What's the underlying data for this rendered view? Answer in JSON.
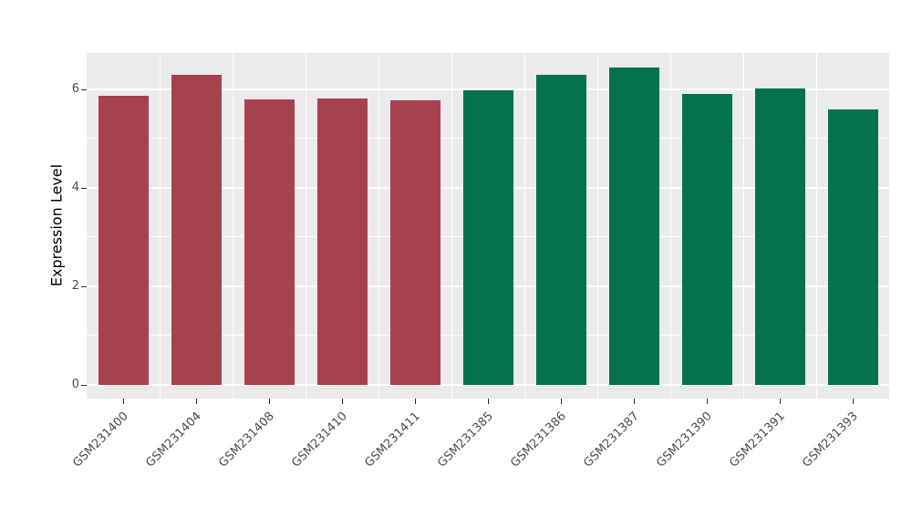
{
  "chart_data": {
    "type": "bar",
    "categories": [
      "GSM231400",
      "GSM231404",
      "GSM231408",
      "GSM231410",
      "GSM231411",
      "GSM231385",
      "GSM231386",
      "GSM231387",
      "GSM231390",
      "GSM231391",
      "GSM231393"
    ],
    "values": [
      5.87,
      6.3,
      5.8,
      5.82,
      5.77,
      5.99,
      6.3,
      6.44,
      5.9,
      6.02,
      5.6
    ],
    "bar_colors": [
      "#A6424E",
      "#A6424E",
      "#A6424E",
      "#A6424E",
      "#A6424E",
      "#04724D",
      "#04724D",
      "#04724D",
      "#04724D",
      "#04724D",
      "#04724D"
    ],
    "group_colors": {
      "red_group": "#A6424E",
      "green_group": "#04724D"
    },
    "title": "",
    "xlabel": "",
    "ylabel": "Expression Level",
    "ylim": [
      0,
      6.75
    ],
    "yticks": [
      0,
      2,
      4,
      6
    ],
    "yticks_minor": [
      1,
      3,
      5
    ],
    "grid": true,
    "panel_background": "#EBEBEB",
    "grid_color": "#FFFFFF",
    "legend": "none"
  }
}
